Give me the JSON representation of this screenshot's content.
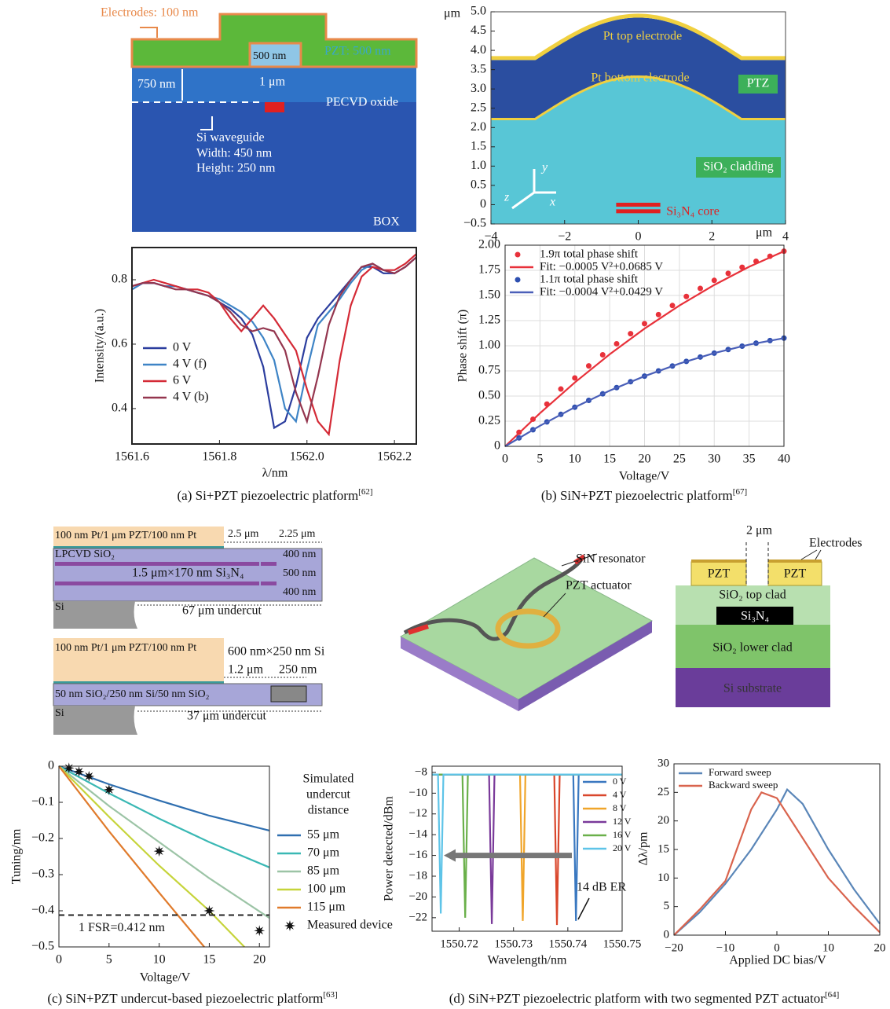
{
  "chart_data": [
    {
      "type": "line",
      "xlabel": "λ/nm",
      "ylabel": "Intensity/(a.u.)",
      "x": [
        1561.6,
        1561.625,
        1561.65,
        1561.675,
        1561.7,
        1561.725,
        1561.75,
        1561.775,
        1561.8,
        1561.825,
        1561.85,
        1561.875,
        1561.9,
        1561.925,
        1561.95,
        1561.975,
        1562.0,
        1562.025,
        1562.05,
        1562.075,
        1562.1,
        1562.125,
        1562.15,
        1562.175,
        1562.2,
        1562.225,
        1562.25
      ],
      "series": [
        {
          "name": "0 V",
          "color": "#2b3d9e",
          "values": [
            0.77,
            0.79,
            0.79,
            0.78,
            0.78,
            0.77,
            0.76,
            0.75,
            0.73,
            0.71,
            0.68,
            0.63,
            0.53,
            0.34,
            0.36,
            0.47,
            0.62,
            0.68,
            0.72,
            0.76,
            0.8,
            0.84,
            0.84,
            0.82,
            0.82,
            0.84,
            0.87
          ]
        },
        {
          "name": "4 V (f)",
          "color": "#3e84c6",
          "values": [
            0.77,
            0.79,
            0.79,
            0.78,
            0.78,
            0.77,
            0.76,
            0.75,
            0.74,
            0.72,
            0.7,
            0.67,
            0.62,
            0.55,
            0.4,
            0.36,
            0.52,
            0.66,
            0.7,
            0.74,
            0.79,
            0.83,
            0.85,
            0.83,
            0.82,
            0.84,
            0.87
          ]
        },
        {
          "name": "6 V",
          "color": "#d42a36",
          "values": [
            0.78,
            0.79,
            0.8,
            0.79,
            0.78,
            0.77,
            0.77,
            0.76,
            0.73,
            0.68,
            0.64,
            0.68,
            0.72,
            0.68,
            0.63,
            0.58,
            0.46,
            0.36,
            0.32,
            0.55,
            0.72,
            0.81,
            0.84,
            0.83,
            0.83,
            0.85,
            0.88
          ]
        },
        {
          "name": "4 V (b)",
          "color": "#94364f",
          "values": [
            0.78,
            0.79,
            0.79,
            0.78,
            0.77,
            0.77,
            0.76,
            0.75,
            0.73,
            0.7,
            0.66,
            0.64,
            0.65,
            0.64,
            0.58,
            0.45,
            0.36,
            0.5,
            0.66,
            0.75,
            0.8,
            0.84,
            0.85,
            0.83,
            0.82,
            0.84,
            0.87
          ]
        }
      ],
      "xlim": [
        1561.6,
        1562.25
      ],
      "xticks": [
        1561.6,
        1561.8,
        {
          "value": 1562,
          "label": "1562.0"
        },
        1562.2
      ],
      "ylim": [
        0.29,
        0.9
      ],
      "yticks": [
        0.4,
        0.6,
        0.8
      ],
      "grid": false,
      "legend": "lower left"
    },
    {
      "type": "cross-section",
      "xunit": "μm",
      "yunit": "μm",
      "labels": [
        "Pt top electrode",
        "Pt bottom electrode",
        "PTZ",
        "SiO₂ cladding",
        "Si₃N₄ core"
      ],
      "compass": [
        "y",
        "z",
        "x"
      ],
      "xlim": [
        -4,
        4
      ],
      "xticks": [
        {
          "value": -4,
          "label": "−4"
        },
        {
          "value": -2,
          "label": "−2"
        },
        0,
        2,
        4
      ],
      "ylim": [
        -0.5,
        5
      ],
      "yticks": [
        {
          "value": -0.5,
          "label": "−0.5"
        },
        0,
        0.5,
        {
          "value": 1,
          "label": "1.0"
        },
        1.5,
        {
          "value": 2,
          "label": "2.0"
        },
        2.5,
        {
          "value": 3,
          "label": "3.0"
        },
        3.5,
        {
          "value": 4,
          "label": "4.0"
        },
        4.5,
        {
          "value": 5,
          "label": "5.0"
        }
      ]
    },
    {
      "type": "line",
      "xlabel": "Voltage/V",
      "ylabel": "Phase shift (π)",
      "series": [
        {
          "name": "1.9π total phase shift",
          "color": "#e8313a",
          "marker": "dot",
          "x": [
            2,
            4,
            6,
            8,
            10,
            12,
            14,
            16,
            18,
            20,
            22,
            24,
            26,
            28,
            30,
            32,
            34,
            36,
            38,
            40
          ],
          "values": [
            0.14,
            0.27,
            0.42,
            0.57,
            0.68,
            0.8,
            0.91,
            1.02,
            1.12,
            1.22,
            1.31,
            1.4,
            1.49,
            1.57,
            1.65,
            1.72,
            1.78,
            1.84,
            1.89,
            1.94
          ]
        },
        {
          "name": "Fit: −0.0005 V²+0.0685 V",
          "color": "#e8313a",
          "x": [
            0,
            5,
            10,
            15,
            20,
            25,
            30,
            35,
            40
          ],
          "values": [
            0,
            0.33,
            0.635,
            0.915,
            1.17,
            1.4,
            1.605,
            1.785,
            1.94
          ]
        },
        {
          "name": "1.1π total phase shift",
          "color": "#2d4fb0",
          "marker": "dot",
          "x": [
            2,
            4,
            6,
            8,
            10,
            12,
            14,
            16,
            18,
            20,
            22,
            24,
            26,
            28,
            30,
            32,
            34,
            36,
            38,
            40
          ],
          "values": [
            0.084,
            0.165,
            0.243,
            0.318,
            0.389,
            0.457,
            0.522,
            0.584,
            0.643,
            0.698,
            0.75,
            0.799,
            0.845,
            0.888,
            0.927,
            0.963,
            0.996,
            1.026,
            1.052,
            1.076
          ]
        },
        {
          "name": "Fit: −0.0004 V²+0.0429 V",
          "color": "#4a5fb8",
          "x": [
            0,
            5,
            10,
            15,
            20,
            25,
            30,
            35,
            40
          ],
          "values": [
            0,
            0.205,
            0.389,
            0.554,
            0.698,
            0.823,
            0.927,
            1.011,
            1.076
          ]
        }
      ],
      "xlim": [
        0,
        40
      ],
      "xticks": [
        0,
        5,
        10,
        15,
        20,
        25,
        30,
        35,
        40
      ],
      "ylim": [
        0,
        2
      ],
      "yticks": [
        0,
        0.25,
        {
          "value": 0.5,
          "label": "0.50"
        },
        0.75,
        {
          "value": 1,
          "label": "1.00"
        },
        1.25,
        {
          "value": 1.5,
          "label": "1.50"
        },
        1.75,
        {
          "value": 2,
          "label": "2.00"
        }
      ],
      "grid": true,
      "legend": "upper left"
    },
    {
      "type": "line",
      "xlabel": "Voltage/V",
      "ylabel": "Tuning/nm",
      "legend_title": [
        "Simulated",
        "undercut",
        "distance"
      ],
      "series": [
        {
          "name": "55 μm",
          "color": "#2f6fb0",
          "x": [
            0,
            5,
            10,
            15,
            21
          ],
          "values": [
            0,
            -0.05,
            -0.095,
            -0.137,
            -0.178
          ]
        },
        {
          "name": "70 μm",
          "color": "#3ab8b4",
          "x": [
            0,
            5,
            10,
            15,
            21
          ],
          "values": [
            0,
            -0.075,
            -0.145,
            -0.21,
            -0.28
          ]
        },
        {
          "name": "85 μm",
          "color": "#9cc4a6",
          "x": [
            0,
            5,
            10,
            15,
            21
          ],
          "values": [
            0,
            -0.11,
            -0.21,
            -0.31,
            -0.42
          ]
        },
        {
          "name": "100 μm",
          "color": "#c6d43a",
          "x": [
            0,
            5,
            10,
            15,
            18.5
          ],
          "values": [
            0,
            -0.14,
            -0.275,
            -0.4,
            -0.5
          ]
        },
        {
          "name": "115 μm",
          "color": "#e07b2c",
          "x": [
            0,
            5,
            10,
            14.5
          ],
          "values": [
            0,
            -0.18,
            -0.35,
            -0.5
          ]
        },
        {
          "name": "Measured device",
          "color": "#111111",
          "marker": "star",
          "x": [
            1,
            2,
            3,
            5,
            10,
            15,
            20
          ],
          "values": [
            -0.005,
            -0.015,
            -0.028,
            -0.065,
            -0.235,
            -0.4,
            -0.455
          ]
        }
      ],
      "annotations": [
        {
          "text": "1 FSR=0.412 nm",
          "value": -0.412
        }
      ],
      "xlim": [
        0,
        21
      ],
      "xticks": [
        0,
        5,
        10,
        15,
        20
      ],
      "ylim": [
        -0.5,
        0
      ],
      "yticks": [
        0,
        {
          "value": -0.1,
          "label": "−0.1"
        },
        {
          "value": -0.2,
          "label": "−0.2"
        },
        {
          "value": -0.3,
          "label": "−0.3"
        },
        {
          "value": -0.4,
          "label": "−0.4"
        },
        {
          "value": -0.5,
          "label": "−0.5"
        }
      ],
      "grid": false,
      "legend": "outside right"
    },
    {
      "type": "line",
      "xlabel": "Wavelength/nm",
      "ylabel": "Power detected/dBm",
      "series": [
        {
          "name": "0 V",
          "color": "#3a78c0",
          "x": [
            1550.715,
            1550.741,
            1550.7415,
            1550.742,
            1550.75
          ],
          "values": [
            -8.2,
            -8.2,
            -22.3,
            -8.2,
            -8.2
          ]
        },
        {
          "name": "4 V",
          "color": "#d9472c",
          "x": [
            1550.715,
            1550.7375,
            1550.738,
            1550.7385,
            1550.75
          ],
          "values": [
            -8.2,
            -8.2,
            -22.7,
            -8.2,
            -8.2
          ]
        },
        {
          "name": "8 V",
          "color": "#f0a52a",
          "x": [
            1550.715,
            1550.7312,
            1550.7317,
            1550.7322,
            1550.75
          ],
          "values": [
            -8.2,
            -8.2,
            -22.3,
            -8.2,
            -8.2
          ]
        },
        {
          "name": "12 V",
          "color": "#7a3a9a",
          "x": [
            1550.715,
            1550.7255,
            1550.726,
            1550.7265,
            1550.75
          ],
          "values": [
            -8.2,
            -8.2,
            -22.6,
            -8.2,
            -8.2
          ]
        },
        {
          "name": "16 V",
          "color": "#6ab04a",
          "x": [
            1550.715,
            1550.7206,
            1550.7211,
            1550.7216,
            1550.75
          ],
          "values": [
            -8.2,
            -8.2,
            -22,
            -8.2,
            -8.2
          ]
        },
        {
          "name": "20 V",
          "color": "#5ec4e8",
          "x": [
            1550.715,
            1550.7161,
            1550.7166,
            1550.7171,
            1550.75
          ],
          "values": [
            -8.2,
            -8.2,
            -21.6,
            -8.2,
            -8.2
          ]
        }
      ],
      "annotations": [
        {
          "text": "14 dB ER"
        }
      ],
      "xlim": [
        1550.715,
        1550.75
      ],
      "xticks": [
        1550.72,
        1550.73,
        1550.74,
        1550.75
      ],
      "ylim": [
        -23.3,
        -7.4
      ],
      "yticks": [
        {
          "value": -8,
          "label": "−8"
        },
        {
          "value": -10,
          "label": "−10"
        },
        {
          "value": -12,
          "label": "−12"
        },
        {
          "value": -14,
          "label": "−14"
        },
        {
          "value": -16,
          "label": "−16"
        },
        {
          "value": -18,
          "label": "−18"
        },
        {
          "value": -20,
          "label": "−20"
        },
        {
          "value": -22,
          "label": "−22"
        }
      ],
      "grid": false,
      "legend": "upper right"
    },
    {
      "type": "line",
      "xlabel": "Applied DC bias/V",
      "ylabel": "Δλ/pm",
      "series": [
        {
          "name": "Forward sweep",
          "color": "#5a86b8",
          "x": [
            -20,
            -15,
            -10,
            -5,
            0,
            2,
            5,
            10,
            15,
            20
          ],
          "values": [
            0,
            4,
            9,
            15,
            22,
            25.5,
            23,
            15,
            8,
            2
          ]
        },
        {
          "name": "Backward sweep",
          "color": "#d9644e",
          "x": [
            -20,
            -15,
            -10,
            -5,
            -3,
            0,
            5,
            10,
            15,
            20
          ],
          "values": [
            0,
            4.5,
            9.5,
            22,
            25,
            24,
            17,
            10,
            5,
            0.5
          ]
        }
      ],
      "xlim": [
        -20,
        20
      ],
      "xticks": [
        {
          "value": -20,
          "label": "−20"
        },
        {
          "value": -10,
          "label": "−10"
        },
        0,
        10,
        20
      ],
      "ylim": [
        0,
        30
      ],
      "yticks": [
        0,
        5,
        10,
        15,
        20,
        25,
        30
      ],
      "grid": false,
      "legend": "upper left"
    }
  ],
  "diagrams": {
    "si_pzt": [
      "Electrodes: 100 nm",
      "PZT: 500 nm",
      "500 nm",
      "1 μm",
      "750 nm",
      "PECVD oxide",
      "Si waveguide",
      "Width: 450 nm",
      "Height: 250 nm",
      "BOX"
    ],
    "undercut_sin": [
      "100 nm Pt/1 μm PZT/100 nm Pt",
      "2.5 μm",
      "2.25 μm",
      "LPCVD SiO₂",
      "400 nm",
      "500 nm",
      "400 nm",
      "1.5 μm×170 nm Si₃N₄",
      "Si",
      "67 μm undercut"
    ],
    "undercut_si": [
      "100 nm Pt/1 μm PZT/100 nm Pt",
      "600 nm×250 nm Si",
      "1.2 μm",
      "250 nm",
      "50 nm SiO₂/250 nm Si/50 nm SiO₂",
      "Si",
      "37 μm undercut"
    ],
    "device": [
      "SiN resonator",
      "PZT actuator"
    ],
    "stack": [
      "2 μm",
      "Electrodes",
      "PZT",
      "PZT",
      "SiO₂ top clad",
      "Si₃N₄",
      "SiO₂ lower clad",
      "Si substrate"
    ]
  },
  "captions": [
    {
      "text": "(a) Si+PZT piezoelectric platform",
      "ref": "[62]"
    },
    {
      "text": "(b) SiN+PZT piezoelectric platform",
      "ref": "[67]"
    },
    {
      "text": "(c) SiN+PZT undercut-based piezoelectric platform",
      "ref": "[63]"
    },
    {
      "text": "(d) SiN+PZT piezoelectric platform with two segmented PZT actuator",
      "ref": "[64]"
    }
  ]
}
